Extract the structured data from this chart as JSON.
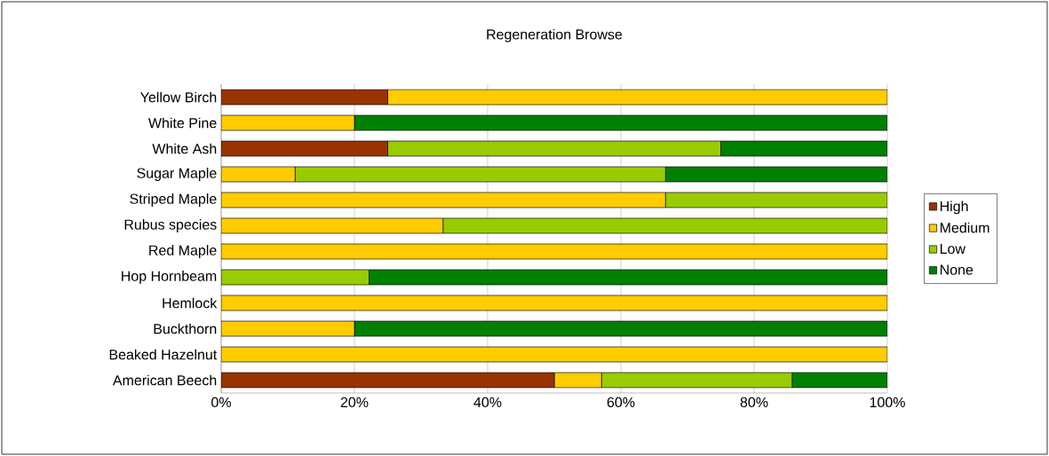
{
  "chart_data": {
    "type": "bar",
    "title": "Regeneration Browse",
    "orientation": "horizontal",
    "stacked": true,
    "categories": [
      "Yellow Birch",
      "White Pine",
      "White Ash",
      "Sugar Maple",
      "Striped Maple",
      "Rubus species",
      "Red Maple",
      "Hop Hornbeam",
      "Hemlock",
      "Buckthorn",
      "Beaked Hazelnut",
      "American Beech"
    ],
    "series": [
      {
        "name": "High",
        "color": "#993300",
        "values": [
          25,
          0,
          25,
          0,
          0,
          0,
          0,
          0,
          0,
          0,
          0,
          50
        ]
      },
      {
        "name": "Medium",
        "color": "#ffcc00",
        "values": [
          75,
          20,
          0,
          11.1,
          66.7,
          33.3,
          100,
          0,
          100,
          20,
          100,
          7.1
        ]
      },
      {
        "name": "Low",
        "color": "#99cc00",
        "values": [
          0,
          0,
          50,
          55.6,
          33.3,
          66.7,
          0,
          22.2,
          0,
          0,
          0,
          28.6
        ]
      },
      {
        "name": "None",
        "color": "#008000",
        "values": [
          0,
          80,
          25,
          33.3,
          0,
          0,
          0,
          77.8,
          0,
          80,
          0,
          14.3
        ]
      }
    ],
    "xlim": [
      0,
      100
    ],
    "xticks": [
      {
        "value": 0,
        "label": "0%"
      },
      {
        "value": 20,
        "label": "20%"
      },
      {
        "value": 40,
        "label": "40%"
      },
      {
        "value": 60,
        "label": "60%"
      },
      {
        "value": 80,
        "label": "80%"
      },
      {
        "value": 100,
        "label": "100%"
      }
    ],
    "grid": "x",
    "legend": "right"
  }
}
